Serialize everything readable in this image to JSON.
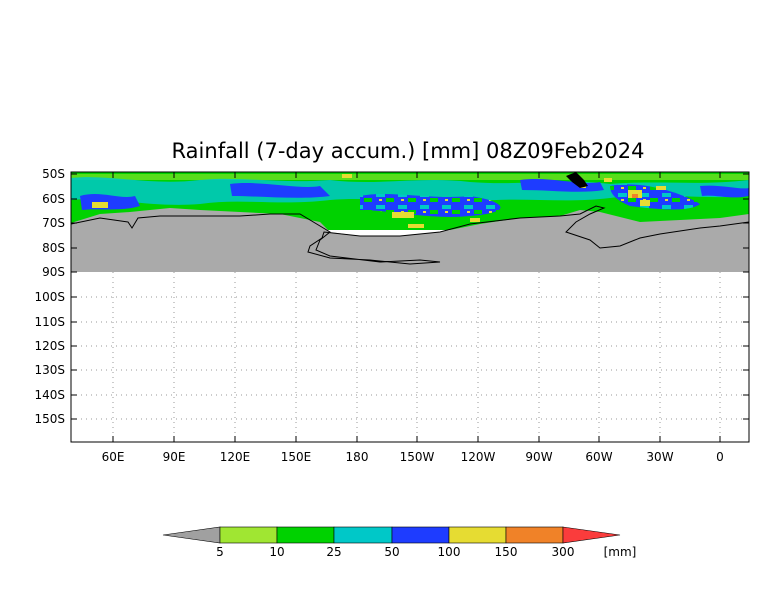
{
  "title": "Rainfall (7-day accum.) [mm] 08Z09Feb2024",
  "lat_labels": [
    "50S",
    "60S",
    "70S",
    "80S",
    "90S",
    "100S",
    "110S",
    "120S",
    "130S",
    "140S",
    "150S"
  ],
  "lon_labels": [
    "60E",
    "90E",
    "120E",
    "150E",
    "180",
    "150W",
    "120W",
    "90W",
    "60W",
    "30W",
    "0"
  ],
  "colorbar": {
    "labels": [
      "5",
      "10",
      "25",
      "50",
      "100",
      "150",
      "300"
    ],
    "unit": "[mm]",
    "colors": [
      "#a0a0a0",
      "#a0e632",
      "#00d200",
      "#00c8c8",
      "#1e3cff",
      "#e6dc32",
      "#f08228",
      "#fa3c3c"
    ]
  },
  "colors": {
    "land": "#aaaaaa",
    "coast": "#000000",
    "frame": "#000000"
  }
}
